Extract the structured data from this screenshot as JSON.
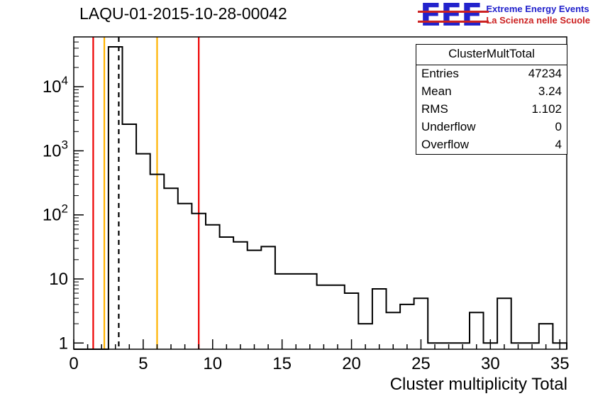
{
  "header": {
    "logo": {
      "acronym": "EEE",
      "line1": "Extreme Energy Events",
      "line2": "La Scienza nelle Scuole"
    }
  },
  "colors": {
    "histogram": "#000000",
    "frame": "#000000",
    "marker_red": "#ee0000",
    "marker_yellow": "#ffb300",
    "logo_blue": "#2222cc",
    "logo_red": "#cc2222"
  },
  "chart_data": {
    "type": "bar",
    "subtype": "step-histogram",
    "title": "LAQU-01-2015-10-28-00042",
    "xlabel": "Cluster multiplicity Total",
    "ylabel": "",
    "yscale": "log",
    "xlim": [
      0,
      35.5
    ],
    "ylim": [
      0.8,
      60000
    ],
    "grid": false,
    "bin_center_start": 0,
    "bin_width": 1,
    "values": [
      0,
      0,
      0,
      42000,
      2600,
      900,
      430,
      260,
      150,
      105,
      70,
      45,
      38,
      28,
      32,
      12,
      12,
      12,
      8,
      8,
      6,
      2,
      7,
      3,
      4,
      5,
      1,
      1,
      1,
      3,
      1,
      5,
      1,
      1,
      2,
      1
    ],
    "x_major_ticks": [
      0,
      5,
      10,
      15,
      20,
      25,
      30,
      35
    ],
    "y_major_ticks": [
      1,
      10,
      100,
      1000,
      10000
    ],
    "y_tick_labels": [
      "1",
      "10",
      "10^2",
      "10^3",
      "10^4"
    ],
    "markers": [
      {
        "x": 1.4,
        "color": "#ee0000",
        "style": "solid"
      },
      {
        "x": 2.2,
        "color": "#ffb300",
        "style": "solid"
      },
      {
        "x": 3.24,
        "color": "#000000",
        "style": "dashed"
      },
      {
        "x": 6.0,
        "color": "#ffb300",
        "style": "solid"
      },
      {
        "x": 9.0,
        "color": "#ee0000",
        "style": "solid"
      }
    ],
    "stats": {
      "title": "ClusterMultTotal",
      "rows": [
        [
          "Entries",
          "47234"
        ],
        [
          "Mean",
          "3.24"
        ],
        [
          "RMS",
          "1.102"
        ],
        [
          "Underflow",
          "0"
        ],
        [
          "Overflow",
          "4"
        ]
      ]
    }
  }
}
